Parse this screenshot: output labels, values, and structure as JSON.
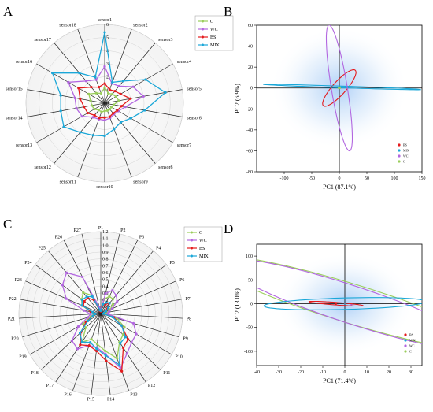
{
  "panels": [
    {
      "letter": "A"
    },
    {
      "letter": "B"
    },
    {
      "letter": "C"
    },
    {
      "letter": "D"
    }
  ],
  "colors": {
    "C": "#9ACD5A",
    "WC": "#B266E0",
    "BS": "#E41A1C",
    "MIX": "#1AA7D8"
  },
  "chart_data": [
    {
      "type": "radar",
      "panel": "A",
      "axes": [
        "sensor1",
        "sensor2",
        "sensor3",
        "sensor4",
        "sensor5",
        "sensor6",
        "sensor7",
        "sensor8",
        "sensor9",
        "sensor10",
        "sensor11",
        "sensor12",
        "sensor13",
        "sensor14",
        "sensor15",
        "sensor16",
        "sensor17",
        "sensor18"
      ],
      "rlim": [
        0,
        6
      ],
      "rticks": [
        "0",
        "1",
        "2",
        "3",
        "4",
        "5",
        "6"
      ],
      "grid": true,
      "legend_position": "top-right",
      "series": [
        {
          "name": "C",
          "values": [
            1.2,
            0.8,
            0.9,
            1.0,
            1.1,
            0.7,
            0.6,
            0.6,
            0.6,
            0.6,
            0.7,
            0.7,
            0.9,
            1.0,
            1.1,
            1.4,
            1.0,
            0.8
          ]
        },
        {
          "name": "WC",
          "values": [
            2.8,
            1.6,
            1.7,
            2.5,
            3.0,
            1.6,
            1.2,
            1.1,
            1.2,
            1.3,
            1.3,
            1.4,
            2.0,
            2.2,
            2.3,
            3.2,
            2.2,
            1.9
          ]
        },
        {
          "name": "BS",
          "values": [
            1.5,
            1.1,
            1.2,
            1.4,
            2.0,
            1.3,
            1.1,
            1.0,
            1.1,
            1.1,
            1.2,
            1.2,
            1.5,
            1.6,
            1.9,
            2.3,
            1.6,
            1.3
          ]
        },
        {
          "name": "MIX",
          "values": [
            5.4,
            1.7,
            2.2,
            3.6,
            4.7,
            3.1,
            2.3,
            1.9,
            2.1,
            2.5,
            2.6,
            2.9,
            3.6,
            3.4,
            3.4,
            4.6,
            3.0,
            2.1
          ]
        }
      ]
    },
    {
      "type": "scatter",
      "panel": "B",
      "xlabel": "PC1 (87.1%)",
      "ylabel": "PC2 (6.9%)",
      "xlim": [
        -150,
        150
      ],
      "ylim": [
        -80,
        60
      ],
      "xticks": [
        -100,
        -50,
        0,
        50,
        100,
        150
      ],
      "yticks": [
        -80,
        -60,
        -40,
        -20,
        0,
        20,
        40,
        60
      ],
      "legend_position": "bottom-right",
      "legend": [
        "BS",
        "MIX",
        "WC",
        "C"
      ],
      "ellipses": [
        {
          "name": "BS",
          "cx": 0,
          "cy": 0,
          "rx": 34,
          "ry": 8,
          "angle_deg": 28
        },
        {
          "name": "MIX",
          "cx": 5,
          "cy": 1,
          "rx": 143,
          "ry": 0.8,
          "angle_deg": -1.0
        },
        {
          "name": "WC",
          "cx": 0,
          "cy": 0,
          "rx": 63,
          "ry": 14,
          "angle_deg": -72
        },
        {
          "name": "C",
          "cx": 0,
          "cy": 0,
          "rx": 2,
          "ry": 0.6,
          "angle_deg": 0
        }
      ]
    },
    {
      "type": "radar",
      "panel": "C",
      "axes": [
        "P1",
        "P2",
        "P3",
        "P4",
        "P5",
        "P6",
        "P7",
        "P8",
        "P9",
        "P10",
        "P11",
        "P12",
        "P13",
        "P14",
        "P15",
        "P16",
        "P17",
        "P18",
        "P19",
        "P20",
        "P21",
        "P22",
        "P23",
        "P24",
        "P25",
        "P26",
        "P27"
      ],
      "rlim": [
        0,
        1.2
      ],
      "rticks": [
        "0",
        "0.1",
        "0.2",
        "0.3",
        "0.4",
        "0.5",
        "0.6",
        "0.7",
        "0.8",
        "0.9",
        "1.0",
        "1.1",
        "1.2"
      ],
      "grid": true,
      "legend_position": "top-right",
      "series": [
        {
          "name": "C",
          "values": [
            0.05,
            0.22,
            0.28,
            0.28,
            0.22,
            0.15,
            0.1,
            0.08,
            0.25,
            0.4,
            0.45,
            0.5,
            0.7,
            0.55,
            0.45,
            0.4,
            0.5,
            0.3,
            0.3,
            0.15,
            0.1,
            0.15,
            0.3,
            0.35,
            0.4,
            0.3,
            0.05
          ]
        },
        {
          "name": "WC",
          "values": [
            0.05,
            0.3,
            0.38,
            0.35,
            0.3,
            0.18,
            0.12,
            0.1,
            0.5,
            0.6,
            0.62,
            0.7,
            0.85,
            0.6,
            0.5,
            0.5,
            0.62,
            0.58,
            0.38,
            0.2,
            0.15,
            0.25,
            0.55,
            0.7,
            0.78,
            0.6,
            0.1
          ]
        },
        {
          "name": "BS",
          "values": [
            0.03,
            0.12,
            0.15,
            0.2,
            0.12,
            0.08,
            0.05,
            0.04,
            0.2,
            0.35,
            0.55,
            0.6,
            0.9,
            0.7,
            0.55,
            0.5,
            0.55,
            0.4,
            0.25,
            0.12,
            0.08,
            0.15,
            0.28,
            0.3,
            0.3,
            0.22,
            0.04
          ]
        },
        {
          "name": "MIX",
          "values": [
            0.04,
            0.14,
            0.18,
            0.2,
            0.14,
            0.08,
            0.05,
            0.04,
            0.18,
            0.35,
            0.5,
            0.52,
            0.8,
            0.62,
            0.52,
            0.45,
            0.5,
            0.42,
            0.22,
            0.12,
            0.08,
            0.12,
            0.3,
            0.34,
            0.32,
            0.28,
            0.05
          ]
        }
      ]
    },
    {
      "type": "scatter",
      "panel": "D",
      "xlabel": "PC1 (71.4%)",
      "ylabel": "PC2 (13.0%)",
      "xlim": [
        -40,
        35
      ],
      "ylim": [
        -130,
        125
      ],
      "xticks": [
        -40,
        -30,
        -20,
        -10,
        0,
        10,
        20,
        30
      ],
      "yticks": [
        -100,
        -50,
        0,
        50,
        100
      ],
      "legend_position": "bottom-right",
      "legend": [
        "BS",
        "MIX",
        "WC",
        "C"
      ],
      "ellipses": [
        {
          "name": "C",
          "cx": 3,
          "cy": 0,
          "rx": 24,
          "ry": 118,
          "angle_deg": 32
        },
        {
          "name": "WC",
          "cx": 3,
          "cy": -2,
          "rx": 22,
          "ry": 110,
          "angle_deg": 30
        },
        {
          "name": "MIX",
          "cx": 0,
          "cy": 0,
          "rx": 37,
          "ry": 12,
          "angle_deg": 8
        },
        {
          "name": "BS",
          "cx": -4,
          "cy": 0,
          "rx": 13,
          "ry": 2.5,
          "angle_deg": -20
        }
      ]
    }
  ]
}
